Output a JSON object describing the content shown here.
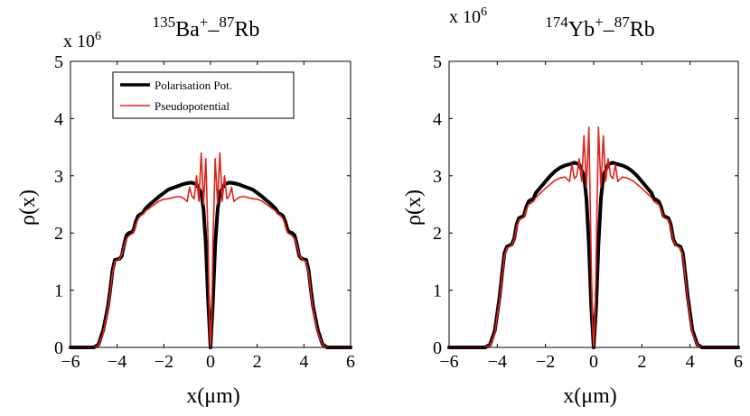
{
  "chart_data": [
    {
      "type": "line",
      "title_parts": {
        "iso1": "135",
        "el1": "Ba",
        "charge": "+",
        "dash": "–",
        "iso2": "87",
        "el2": "Rb"
      },
      "xlabel": "x(μm)",
      "ylabel": "ρ(x)",
      "xlim": [
        -6,
        6
      ],
      "ylim": [
        0,
        5000000
      ],
      "xticks": [
        "−6",
        "−4",
        "−2",
        "0",
        "2",
        "4",
        "6"
      ],
      "yticks": [
        "0",
        "1",
        "2",
        "3",
        "4",
        "5"
      ],
      "y_multiplier": {
        "base": "x 10",
        "exp": "6"
      },
      "legend": {
        "placement": "top-center",
        "entries": [
          "Polarisation Pot.",
          "Pseudopotential"
        ]
      },
      "grid": false,
      "series": [
        {
          "name": "Polarisation Pot.",
          "color": "#000000",
          "x": [
            -6,
            -5,
            -4.8,
            -4.6,
            -4.4,
            -4.3,
            -4.2,
            -4.1,
            -4.0,
            -3.9,
            -3.8,
            -3.7,
            -3.6,
            -3.5,
            -3.4,
            -3.3,
            -3.2,
            -3.1,
            -3.0,
            -2.9,
            -2.8,
            -2.6,
            -2.4,
            -2.2,
            -2.0,
            -1.8,
            -1.6,
            -1.4,
            -1.2,
            -1.0,
            -0.8,
            -0.6,
            -0.4,
            -0.3,
            -0.2,
            -0.1,
            0,
            0.1,
            0.2,
            0.3,
            0.4,
            0.6,
            0.8,
            1.0,
            1.2,
            1.4,
            1.6,
            1.8,
            2.0,
            2.2,
            2.4,
            2.6,
            2.8,
            2.9,
            3.0,
            3.1,
            3.2,
            3.3,
            3.4,
            3.5,
            3.6,
            3.7,
            3.8,
            3.9,
            4.0,
            4.1,
            4.2,
            4.3,
            4.4,
            4.6,
            4.8,
            5,
            6
          ],
          "y": [
            0,
            0,
            50000,
            300000,
            700000,
            1000000,
            1350000,
            1530000,
            1540000,
            1550000,
            1600000,
            1800000,
            1960000,
            2000000,
            2010000,
            2050000,
            2200000,
            2300000,
            2330000,
            2350000,
            2420000,
            2500000,
            2570000,
            2640000,
            2700000,
            2760000,
            2790000,
            2820000,
            2850000,
            2870000,
            2880000,
            2850000,
            2700000,
            2400000,
            1800000,
            800000,
            0,
            800000,
            1800000,
            2400000,
            2700000,
            2850000,
            2880000,
            2870000,
            2850000,
            2820000,
            2790000,
            2760000,
            2700000,
            2640000,
            2570000,
            2500000,
            2420000,
            2350000,
            2330000,
            2300000,
            2200000,
            2050000,
            2010000,
            2000000,
            1960000,
            1800000,
            1600000,
            1550000,
            1540000,
            1530000,
            1350000,
            1000000,
            700000,
            300000,
            50000,
            0,
            0
          ]
        },
        {
          "name": "Pseudopotential",
          "color": "#e0231c",
          "x": [
            -6,
            -5,
            -4.8,
            -4.6,
            -4.4,
            -4.3,
            -4.2,
            -4.1,
            -4.0,
            -3.9,
            -3.8,
            -3.7,
            -3.6,
            -3.5,
            -3.4,
            -3.3,
            -3.2,
            -3.1,
            -3.0,
            -2.9,
            -2.8,
            -2.6,
            -2.4,
            -2.2,
            -2.0,
            -1.8,
            -1.6,
            -1.4,
            -1.2,
            -1.0,
            -0.9,
            -0.8,
            -0.7,
            -0.6,
            -0.5,
            -0.4,
            -0.3,
            -0.2,
            -0.1,
            -0.05,
            0,
            0.05,
            0.1,
            0.2,
            0.3,
            0.4,
            0.5,
            0.6,
            0.7,
            0.8,
            0.9,
            1.0,
            1.2,
            1.4,
            1.6,
            1.8,
            2.0,
            2.2,
            2.4,
            2.6,
            2.8,
            2.9,
            3.0,
            3.1,
            3.2,
            3.3,
            3.4,
            3.5,
            3.6,
            3.7,
            3.8,
            3.9,
            4.0,
            4.1,
            4.2,
            4.3,
            4.4,
            4.6,
            4.8,
            5,
            6
          ],
          "y": [
            0,
            0,
            40000,
            250000,
            650000,
            950000,
            1300000,
            1500000,
            1520000,
            1550000,
            1620000,
            1780000,
            1900000,
            1950000,
            1980000,
            2000000,
            2150000,
            2250000,
            2300000,
            2330000,
            2380000,
            2440000,
            2500000,
            2560000,
            2590000,
            2600000,
            2620000,
            2640000,
            2620000,
            2550000,
            2800000,
            2650000,
            2600000,
            3000000,
            2550000,
            3400000,
            2500000,
            3300000,
            1800000,
            500000,
            0,
            500000,
            1800000,
            3300000,
            2500000,
            3400000,
            2550000,
            3000000,
            2600000,
            2650000,
            2800000,
            2550000,
            2620000,
            2640000,
            2620000,
            2600000,
            2590000,
            2560000,
            2500000,
            2440000,
            2380000,
            2330000,
            2300000,
            2250000,
            2150000,
            2000000,
            1980000,
            1950000,
            1900000,
            1780000,
            1620000,
            1550000,
            1520000,
            1500000,
            1300000,
            950000,
            650000,
            250000,
            40000,
            0,
            0
          ]
        }
      ]
    },
    {
      "type": "line",
      "title_parts": {
        "iso1": "174",
        "el1": "Yb",
        "charge": "+",
        "dash": "–",
        "iso2": "87",
        "el2": "Rb"
      },
      "xlabel": "x(μm)",
      "ylabel": "ρ(x)",
      "xlim": [
        -6,
        6
      ],
      "ylim": [
        0,
        5000000
      ],
      "xticks": [
        "−6",
        "−4",
        "−2",
        "0",
        "2",
        "4",
        "6"
      ],
      "yticks": [
        "0",
        "1",
        "2",
        "3",
        "4",
        "5"
      ],
      "y_multiplier": {
        "base": "x 10",
        "exp": "6"
      },
      "grid": false,
      "series": [
        {
          "name": "Polarisation Pot.",
          "color": "#000000",
          "x": [
            -6,
            -4.5,
            -4.3,
            -4.1,
            -3.9,
            -3.8,
            -3.7,
            -3.6,
            -3.5,
            -3.4,
            -3.3,
            -3.2,
            -3.1,
            -3.0,
            -2.9,
            -2.8,
            -2.7,
            -2.6,
            -2.5,
            -2.4,
            -2.2,
            -2.0,
            -1.8,
            -1.6,
            -1.4,
            -1.2,
            -1.0,
            -0.8,
            -0.6,
            -0.4,
            -0.3,
            -0.2,
            -0.1,
            0,
            0.1,
            0.2,
            0.3,
            0.4,
            0.6,
            0.8,
            1.0,
            1.2,
            1.4,
            1.6,
            1.8,
            2.0,
            2.2,
            2.4,
            2.5,
            2.6,
            2.7,
            2.8,
            2.9,
            3.0,
            3.1,
            3.2,
            3.3,
            3.4,
            3.5,
            3.6,
            3.7,
            3.8,
            3.9,
            4.1,
            4.3,
            4.5,
            6
          ],
          "y": [
            0,
            0,
            50000,
            300000,
            900000,
            1300000,
            1650000,
            1760000,
            1780000,
            1800000,
            1900000,
            2150000,
            2260000,
            2280000,
            2300000,
            2450000,
            2550000,
            2580000,
            2600000,
            2700000,
            2800000,
            2900000,
            3000000,
            3080000,
            3140000,
            3180000,
            3200000,
            3230000,
            3200000,
            3000000,
            2600000,
            1800000,
            700000,
            0,
            700000,
            1800000,
            2600000,
            3000000,
            3200000,
            3230000,
            3200000,
            3180000,
            3140000,
            3080000,
            3000000,
            2900000,
            2800000,
            2700000,
            2600000,
            2580000,
            2550000,
            2450000,
            2300000,
            2280000,
            2260000,
            2150000,
            1900000,
            1800000,
            1780000,
            1760000,
            1650000,
            1300000,
            900000,
            300000,
            50000,
            0,
            0
          ]
        },
        {
          "name": "Pseudopotential",
          "color": "#e0231c",
          "x": [
            -6,
            -4.5,
            -4.3,
            -4.1,
            -3.9,
            -3.8,
            -3.7,
            -3.6,
            -3.5,
            -3.4,
            -3.3,
            -3.2,
            -3.1,
            -3.0,
            -2.9,
            -2.8,
            -2.7,
            -2.6,
            -2.5,
            -2.4,
            -2.2,
            -2.0,
            -1.8,
            -1.6,
            -1.4,
            -1.2,
            -1.0,
            -0.9,
            -0.8,
            -0.7,
            -0.6,
            -0.5,
            -0.4,
            -0.3,
            -0.2,
            -0.1,
            -0.05,
            0,
            0.05,
            0.1,
            0.2,
            0.3,
            0.4,
            0.5,
            0.6,
            0.7,
            0.8,
            0.9,
            1.0,
            1.2,
            1.4,
            1.6,
            1.8,
            2.0,
            2.2,
            2.4,
            2.5,
            2.6,
            2.7,
            2.8,
            2.9,
            3.0,
            3.1,
            3.2,
            3.3,
            3.4,
            3.5,
            3.6,
            3.7,
            3.8,
            3.9,
            4.1,
            4.3,
            4.5,
            6
          ],
          "y": [
            0,
            0,
            40000,
            250000,
            850000,
            1250000,
            1600000,
            1740000,
            1760000,
            1790000,
            1880000,
            2100000,
            2230000,
            2250000,
            2270000,
            2400000,
            2500000,
            2520000,
            2550000,
            2620000,
            2700000,
            2780000,
            2850000,
            2920000,
            2960000,
            2980000,
            2900000,
            3200000,
            2950000,
            3000000,
            3300000,
            2900000,
            3700000,
            2800000,
            3850000,
            1500000,
            400000,
            0,
            400000,
            1500000,
            3850000,
            2800000,
            3700000,
            2900000,
            3300000,
            3000000,
            2950000,
            3200000,
            2900000,
            2980000,
            2960000,
            2920000,
            2850000,
            2780000,
            2700000,
            2620000,
            2550000,
            2520000,
            2500000,
            2400000,
            2270000,
            2250000,
            2230000,
            2100000,
            1880000,
            1790000,
            1760000,
            1740000,
            1600000,
            1250000,
            850000,
            250000,
            40000,
            0,
            0
          ]
        }
      ]
    }
  ]
}
